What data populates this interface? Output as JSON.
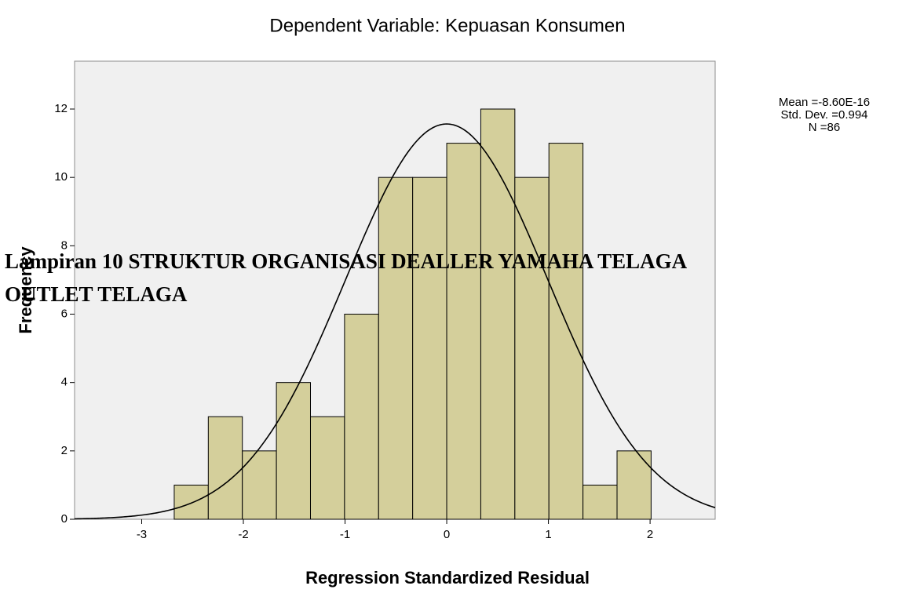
{
  "chart_data": {
    "type": "histogram",
    "title": "Dependent Variable: Kepuasan Konsumen",
    "xlabel": "Regression Standardized Residual",
    "ylabel": "Frequency",
    "bins": [
      -2.68,
      -2.345,
      -2.01,
      -1.675,
      -1.34,
      -1.005,
      -0.67,
      -0.335,
      0,
      0.335,
      0.67,
      1.005,
      1.34,
      1.675,
      2.01
    ],
    "values": [
      1,
      3,
      2,
      4,
      3,
      6,
      10,
      10,
      11,
      12,
      10,
      11,
      1,
      2
    ],
    "color": "#d4cf9b",
    "xlim": [
      -3.66,
      2.64
    ],
    "ylim": [
      0,
      13.4
    ],
    "xticks": [
      -3,
      -2,
      -1,
      0,
      1,
      2
    ],
    "yticks": [
      0,
      2,
      4,
      6,
      8,
      10,
      12
    ],
    "normal_curve": {
      "mean": {
        "value": -8.6e-16,
        "label": "Mean =-8.60E-16"
      },
      "sd": {
        "value": 0.994,
        "label": "Std. Dev. =0.994"
      },
      "n": {
        "value": 86,
        "label": "N =86"
      }
    }
  },
  "document": {
    "heading": [
      "Lampiran 10  STRUKTUR ORGANISASI DEALLER YAMAHA TELAGA",
      "OUTLET TELAGA"
    ]
  }
}
